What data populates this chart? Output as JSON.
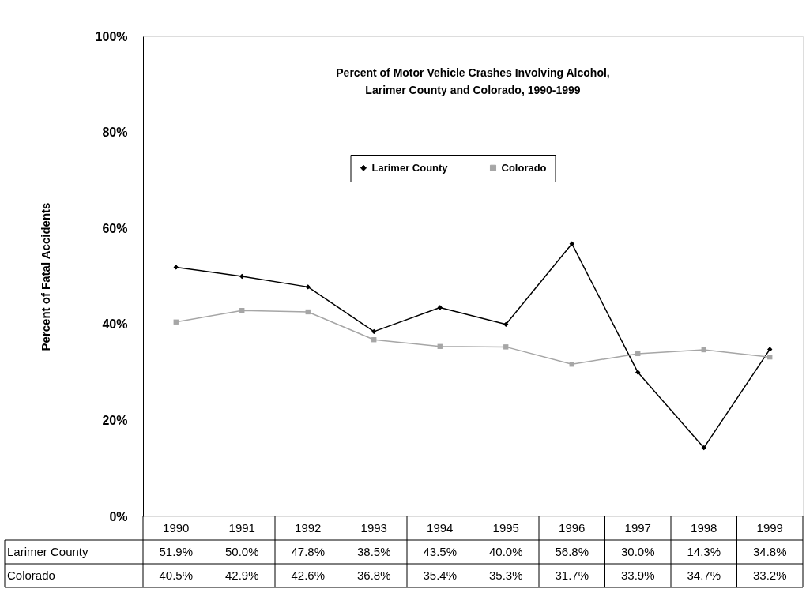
{
  "chart_data": {
    "type": "line",
    "title": "Percent of Motor Vehicle Crashes Involving Alcohol,\nLarimer County and Colorado, 1990-1999",
    "ylabel": "Percent of Fatal Accidents",
    "categories": [
      "1990",
      "1991",
      "1992",
      "1993",
      "1994",
      "1995",
      "1996",
      "1997",
      "1998",
      "1999"
    ],
    "series": [
      {
        "name": "Larimer County",
        "color": "#000000",
        "marker": "diamond",
        "values": [
          51.9,
          50.0,
          47.8,
          38.5,
          43.5,
          40.0,
          56.8,
          30.0,
          14.3,
          34.8
        ],
        "value_labels": [
          "51.9%",
          "50.0%",
          "47.8%",
          "38.5%",
          "43.5%",
          "40.0%",
          "56.8%",
          "30.0%",
          "14.3%",
          "34.8%"
        ]
      },
      {
        "name": "Colorado",
        "color": "#a6a6a6",
        "marker": "square",
        "values": [
          40.5,
          42.9,
          42.6,
          36.8,
          35.4,
          35.3,
          31.7,
          33.9,
          34.7,
          33.2
        ],
        "value_labels": [
          "40.5%",
          "42.9%",
          "42.6%",
          "36.8%",
          "35.4%",
          "35.3%",
          "31.7%",
          "33.9%",
          "34.7%",
          "33.2%"
        ]
      }
    ],
    "ylim": [
      0,
      100
    ],
    "yticks": [
      {
        "value": 0,
        "label": "0%"
      },
      {
        "value": 20,
        "label": "20%"
      },
      {
        "value": 40,
        "label": "40%"
      },
      {
        "value": 60,
        "label": "60%"
      },
      {
        "value": 80,
        "label": "80%"
      },
      {
        "value": 100,
        "label": "100%"
      }
    ],
    "grid": false,
    "legend": "top",
    "line_style": "solid"
  }
}
